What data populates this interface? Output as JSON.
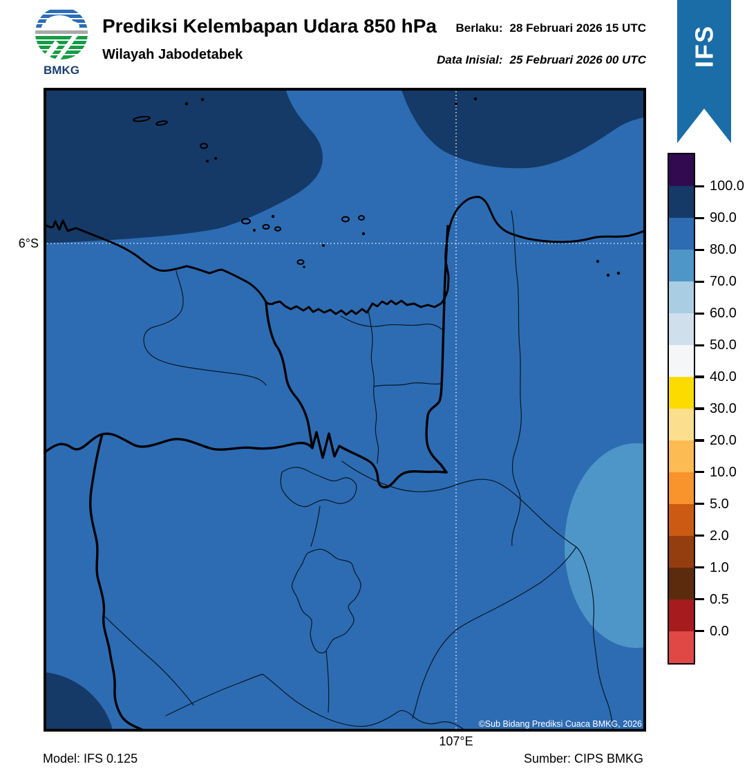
{
  "header": {
    "logo_text": "BMKG",
    "title": "Prediksi Kelembapan Udara 850 hPa",
    "subtitle": "Wilayah Jabodetabek",
    "valid_label": "Berlaku:",
    "valid_value": "28 Februari 2026 15 UTC",
    "initial_label": "Data Inisial:",
    "initial_value": "25 Februari 2026 00 UTC",
    "badge_text": "IFS",
    "badge_color": "#1a6da6"
  },
  "map": {
    "lat_label": "6°S",
    "lon_label": "107°E",
    "copyright": "©Sub Bidang Prediksi Cuaca BMKG, 2026",
    "band_colors": {
      "rh_90_100": "#153a68",
      "rh_80_90": "#2d6cb3",
      "rh_70_80": "#4f96c8"
    },
    "gridline_color": "#ffffff",
    "boundary_color": "#000000"
  },
  "legend": {
    "tick_labels": [
      "100.0",
      "90.0",
      "80.0",
      "70.0",
      "60.0",
      "50.0",
      "40.0",
      "30.0",
      "20.0",
      "10.0",
      "5.0",
      "2.0",
      "1.0",
      "0.5",
      "0.0"
    ],
    "segment_colors": [
      "#310a4f",
      "#153a68",
      "#2d6cb3",
      "#4f96c8",
      "#a9cee3",
      "#cfe0ec",
      "#f4f6f7",
      "#fcdc00",
      "#fbdf8e",
      "#fdbb53",
      "#f9932c",
      "#cc5a12",
      "#943d0f",
      "#5c2b0e",
      "#a51b1e",
      "#e04846"
    ]
  },
  "footer": {
    "model": "Model: IFS 0.125",
    "source": "Sumber: CIPS BMKG"
  }
}
